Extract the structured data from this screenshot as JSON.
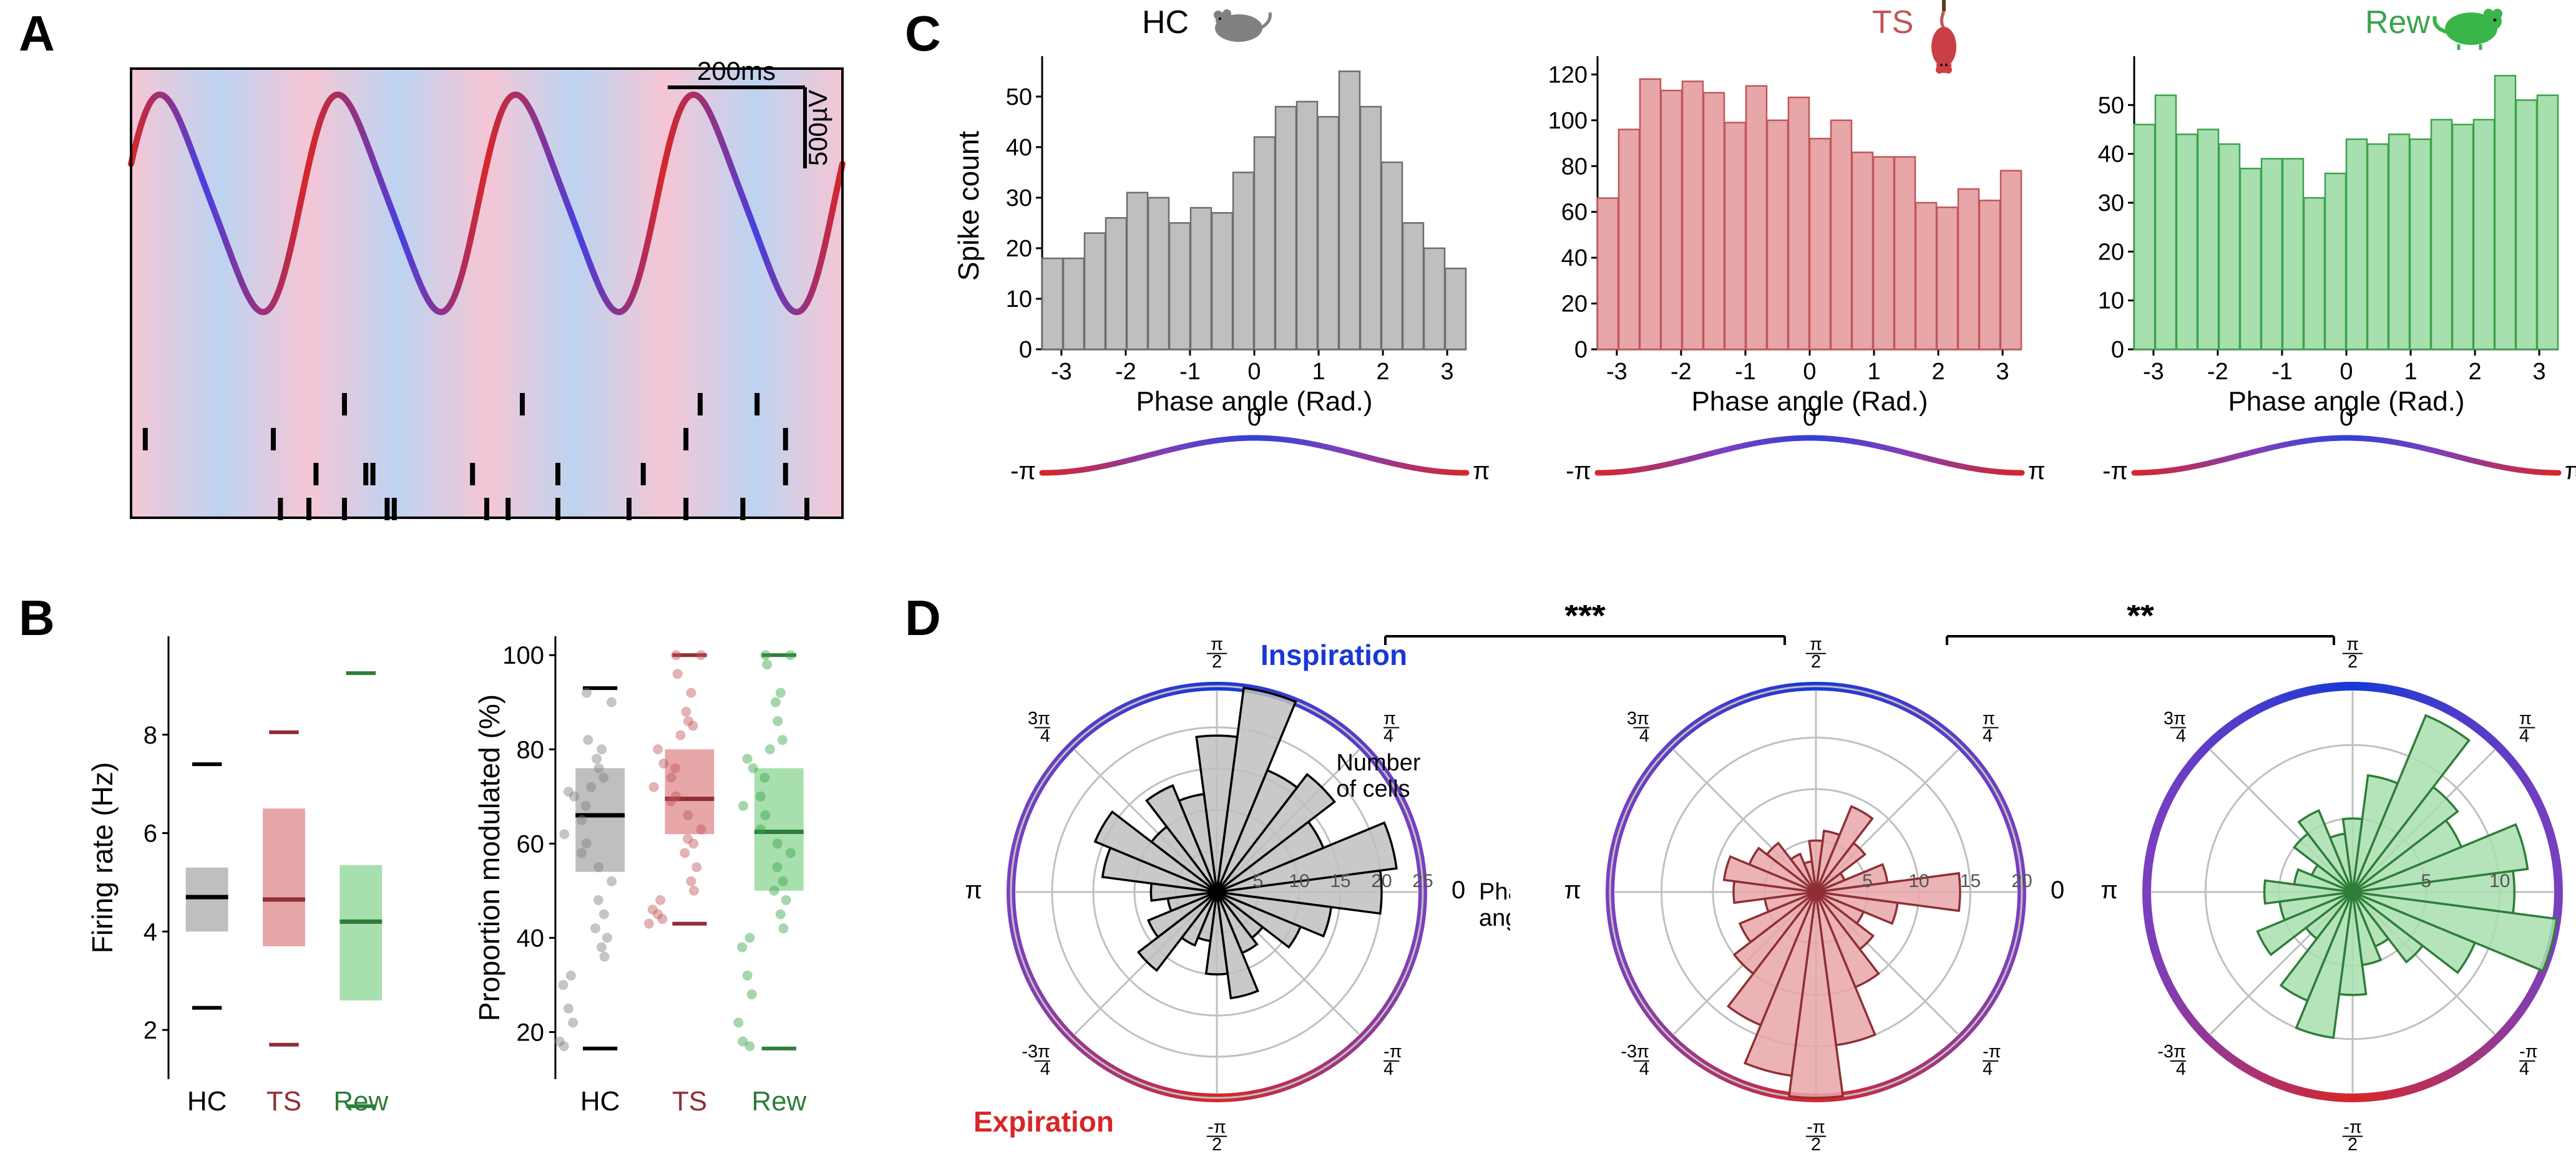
{
  "colors": {
    "hc": "#7f7f7f",
    "hc_fill": "#bfbfbf",
    "ts": "#c1565a",
    "ts_fill": "#e7a6a8",
    "ts_dark": "#8f2f35",
    "rew": "#3aa34a",
    "rew_fill": "#a8dfae",
    "rew_dark": "#2f7d39",
    "black": "#000000",
    "blue": "#1838d6",
    "red": "#d62728",
    "grid": "#c0c0c0",
    "bg": "#ffffff",
    "a_grad1": "#f5c6d5",
    "a_grad2": "#bdd3f1"
  },
  "panels": {
    "A": {
      "label": "A"
    },
    "B": {
      "label": "B"
    },
    "C": {
      "label": "C"
    },
    "D": {
      "label": "D"
    }
  },
  "panelA": {
    "scale_time": "200ms",
    "scale_volt": "500µV",
    "spike_rows": 4,
    "spike_ticks": [
      [
        0.3,
        0.55,
        0.8,
        0.88
      ],
      [
        0.02,
        0.2,
        0.78,
        0.92
      ],
      [
        0.26,
        0.33,
        0.34,
        0.48,
        0.6,
        0.72,
        0.92
      ],
      [
        0.21,
        0.25,
        0.3,
        0.36,
        0.37,
        0.5,
        0.53,
        0.6,
        0.7,
        0.78,
        0.86,
        0.95
      ]
    ],
    "wave_periods": 4
  },
  "panelB_left": {
    "ylabel": "Firing rate (Hz)",
    "categories": [
      "HC",
      "TS",
      "Rew"
    ],
    "yticks": [
      2,
      4,
      6,
      8
    ],
    "ylim": [
      1,
      10
    ],
    "stats": [
      {
        "q1": 4.0,
        "median": 4.7,
        "q3": 5.3,
        "min": 2.45,
        "max": 7.4,
        "color": "#7f7f7f",
        "fill": "#bfbfbf",
        "accent": "#000000"
      },
      {
        "q1": 3.7,
        "median": 4.65,
        "q3": 6.5,
        "min": 1.7,
        "max": 8.05,
        "color": "#c1565a",
        "fill": "#e7a6a8",
        "accent": "#8f2f35"
      },
      {
        "q1": 2.6,
        "median": 4.2,
        "q3": 5.35,
        "min": 0.45,
        "max": 9.25,
        "color": "#3aa34a",
        "fill": "#a8dfae",
        "accent": "#2f7d39"
      }
    ]
  },
  "panelB_right": {
    "ylabel": "Proportion modulated (%)",
    "categories": [
      "HC",
      "TS",
      "Rew"
    ],
    "yticks": [
      20,
      40,
      60,
      80,
      100
    ],
    "ylim": [
      10,
      104
    ],
    "stats": [
      {
        "q1": 54,
        "median": 66,
        "q3": 76,
        "min": 16.5,
        "max": 93,
        "color": "#7f7f7f",
        "fill": "#bfbfbf",
        "accent": "#000000"
      },
      {
        "q1": 62,
        "median": 69.5,
        "q3": 80,
        "min": 43,
        "max": 100,
        "color": "#c1565a",
        "fill": "#e7a6a8",
        "accent": "#8f2f35"
      },
      {
        "q1": 50,
        "median": 62.5,
        "q3": 76,
        "min": 16.5,
        "max": 100,
        "color": "#3aa34a",
        "fill": "#a8dfae",
        "accent": "#2f7d39"
      }
    ],
    "scatter": [
      [
        92,
        90,
        82,
        80,
        78,
        76,
        74,
        72,
        71,
        70,
        68,
        65,
        62,
        60,
        58,
        55,
        52,
        48,
        45,
        42,
        40,
        38,
        36,
        32,
        30,
        25,
        22,
        18,
        17
      ],
      [
        100,
        100,
        96,
        92,
        88,
        86,
        85,
        83,
        80,
        77,
        76,
        74,
        72,
        70,
        69,
        66,
        63,
        61,
        60,
        58,
        55,
        52,
        50,
        48,
        46,
        45,
        44,
        43
      ],
      [
        100,
        100,
        98,
        92,
        90,
        86,
        82,
        80,
        78,
        76,
        74,
        70,
        68,
        66,
        63,
        60,
        58,
        55,
        52,
        50,
        48,
        45,
        42,
        40,
        38,
        32,
        28,
        22,
        18,
        17
      ]
    ]
  },
  "panelC": {
    "xlabel": "Phase angle (Rad.)",
    "ylabel": "Spike count",
    "xticks": [
      -3,
      -2,
      -1,
      0,
      1,
      2,
      3
    ],
    "xlim": [
      -3.3,
      3.3
    ],
    "charts": [
      {
        "title": "HC",
        "color": "#6d6d6d",
        "fill": "#bfbfbf",
        "yticks": [
          0,
          10,
          20,
          30,
          40,
          50
        ],
        "ylim": [
          0,
          58
        ],
        "values": [
          18,
          18,
          23,
          26,
          31,
          30,
          25,
          28,
          27,
          35,
          42,
          48,
          49,
          46,
          55,
          48,
          37,
          25,
          20,
          16
        ]
      },
      {
        "title": "TS",
        "color": "#c1565a",
        "fill": "#e7a6a8",
        "yticks": [
          0,
          20,
          40,
          60,
          80,
          100,
          120
        ],
        "ylim": [
          0,
          128
        ],
        "values": [
          66,
          96,
          118,
          113,
          117,
          112,
          99,
          115,
          100,
          110,
          92,
          100,
          86,
          84,
          84,
          64,
          62,
          70,
          65,
          78
        ]
      },
      {
        "title": "Rew",
        "color": "#3aa34a",
        "fill": "#a8dfae",
        "yticks": [
          0,
          10,
          20,
          30,
          40,
          50
        ],
        "ylim": [
          0,
          60
        ],
        "values": [
          46,
          52,
          44,
          45,
          42,
          37,
          39,
          39,
          31,
          36,
          43,
          42,
          44,
          43,
          47,
          46,
          47,
          56,
          51,
          52
        ]
      }
    ],
    "phase_labels": {
      "left": "-π",
      "mid": "0",
      "right": "π"
    }
  },
  "panelD": {
    "top_label": "Inspiration",
    "bottom_label": "Expiration",
    "count_label": "Number\nof cells",
    "angle_label": "Phase\nangle (Rad)",
    "sig1": "***",
    "sig2": "**",
    "angle_ticks": [
      "0",
      "π/4",
      "π/2",
      "3π/4",
      "π",
      "-3π/4",
      "-π/2",
      "-π/4"
    ],
    "angle_tick_html": [
      "0",
      "π⁄4",
      "π⁄2",
      "3π⁄4",
      "π",
      "-3π⁄4",
      "-π⁄2",
      "-π⁄4"
    ],
    "rmax": [
      25,
      20,
      14
    ],
    "rticks": [
      [
        5,
        10,
        15,
        20,
        25
      ],
      [
        5,
        10,
        15,
        20
      ],
      [
        5,
        10
      ]
    ],
    "charts": [
      {
        "color": "#000000",
        "fill": "#bfbfbf",
        "values": [
          20,
          22,
          14,
          18,
          16,
          25,
          19,
          12,
          14,
          10,
          16,
          14,
          8,
          6,
          9,
          12,
          7,
          6,
          10,
          13,
          8,
          7,
          11,
          14
        ]
      },
      {
        "color": "#8f2f35",
        "fill": "#e7a6a8",
        "values": [
          14,
          7,
          3,
          6,
          9,
          6,
          5,
          3,
          4,
          6,
          7,
          9,
          8,
          5,
          8,
          10,
          14,
          18,
          20,
          15,
          10,
          7,
          5,
          8
        ]
      },
      {
        "color": "#2f7d39",
        "fill": "#a8dfae",
        "values": [
          11,
          12,
          8,
          9,
          13,
          8,
          5,
          4,
          6,
          5,
          3,
          4,
          6,
          5,
          7,
          4,
          8,
          10,
          7,
          5,
          4,
          6,
          9,
          14
        ]
      }
    ]
  },
  "fonts": {
    "panel_label": 80,
    "axis_label": 46,
    "tick": 40,
    "title": 52,
    "polar_tick": 32,
    "sig": 56
  }
}
